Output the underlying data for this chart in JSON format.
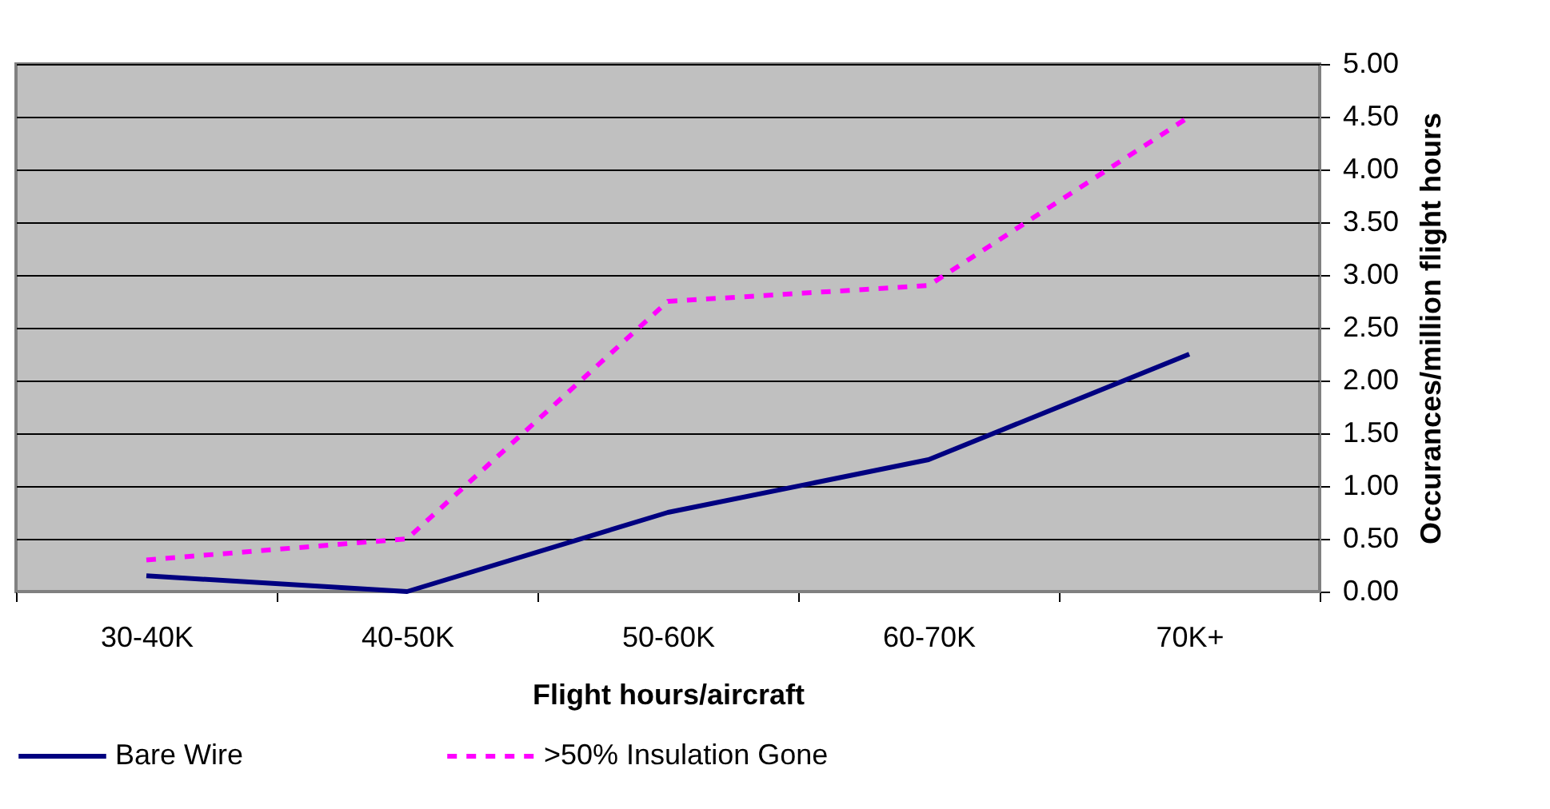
{
  "chart_data": {
    "type": "line",
    "xlabel": "Flight hours/aircraft",
    "ylabel": "Occurances/million flight hours",
    "categories": [
      "30-40K",
      "40-50K",
      "50-60K",
      "60-70K",
      "70K+"
    ],
    "series": [
      {
        "name": "Bare Wire",
        "color": "#000080",
        "line_style": "solid",
        "values": [
          0.15,
          0,
          0.75,
          1.25,
          2.25
        ]
      },
      {
        "name": ">50% Insulation Gone",
        "color": "#ff00ff",
        "line_style": "dashed",
        "values": [
          0.3,
          0.5,
          2.75,
          2.9,
          4.5
        ]
      }
    ],
    "ylim": [
      0,
      5
    ],
    "yticks": [
      {
        "value": 0,
        "label": "0.00"
      },
      {
        "value": 0.5,
        "label": "0.50"
      },
      {
        "value": 1,
        "label": "1.00"
      },
      {
        "value": 1.5,
        "label": "1.50"
      },
      {
        "value": 2,
        "label": "2.00"
      },
      {
        "value": 2.5,
        "label": "2.50"
      },
      {
        "value": 3,
        "label": "3.00"
      },
      {
        "value": 3.5,
        "label": "3.50"
      },
      {
        "value": 4,
        "label": "4.00"
      },
      {
        "value": 4.5,
        "label": "4.50"
      },
      {
        "value": 5,
        "label": "5.00"
      }
    ],
    "grid": "y",
    "legend": "bottom",
    "marker": "none"
  }
}
